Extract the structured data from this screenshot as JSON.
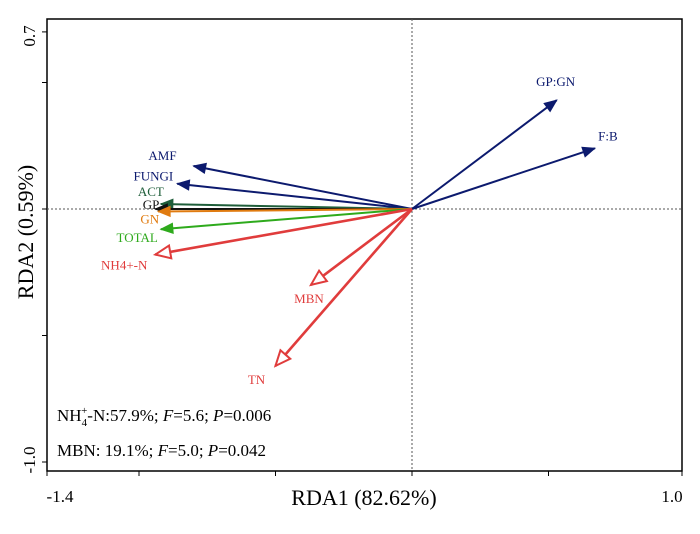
{
  "chart_data": {
    "type": "biplot",
    "title": "",
    "xlabel": "RDA1 (82.62%)",
    "ylabel": "RDA2 (0.59%)",
    "xlim": [
      -1.4,
      1.0
    ],
    "ylim": [
      -1.0,
      0.7
    ],
    "x_tick_labels": [
      "-1.4",
      "1.0"
    ],
    "y_tick_labels": [
      "0.7",
      "-1.0"
    ],
    "response_vectors": [
      {
        "name": "GP:GN",
        "x": 0.53,
        "y": 0.43,
        "color": "#0c1a6e"
      },
      {
        "name": "F:B",
        "x": 0.67,
        "y": 0.24,
        "color": "#0c1a6e"
      },
      {
        "name": "AMF",
        "x": -0.8,
        "y": 0.17,
        "color": "#0c1a6e"
      },
      {
        "name": "FUNGI",
        "x": -0.86,
        "y": 0.1,
        "color": "#0c1a6e"
      },
      {
        "name": "ACT",
        "x": -0.92,
        "y": 0.02,
        "color": "#1f5e3a"
      },
      {
        "name": "GP",
        "x": -0.94,
        "y": 0.0,
        "color": "#111111"
      },
      {
        "name": "GN",
        "x": -0.93,
        "y": -0.01,
        "color": "#e07b10"
      },
      {
        "name": "TOTAL",
        "x": -0.92,
        "y": -0.08,
        "color": "#2eaa1c"
      }
    ],
    "explanatory_vectors": [
      {
        "name": "NH4+-N",
        "x": -0.94,
        "y": -0.18,
        "color": "#e03c3c"
      },
      {
        "name": "MBN",
        "x": -0.37,
        "y": -0.3,
        "color": "#e03c3c"
      },
      {
        "name": "TN",
        "x": -0.5,
        "y": -0.62,
        "color": "#e03c3c"
      }
    ]
  },
  "stats": {
    "nh4": {
      "pct": ":57.9%; ",
      "f_label": "F",
      "f_val": "=5.6; ",
      "p_label": "P",
      "p_val": "=0.006"
    },
    "mbn": {
      "prefix": "MBN: 19.1%; ",
      "f_label": "F",
      "f_val": "=5.0; ",
      "p_label": "P",
      "p_val": "=0.042"
    }
  }
}
